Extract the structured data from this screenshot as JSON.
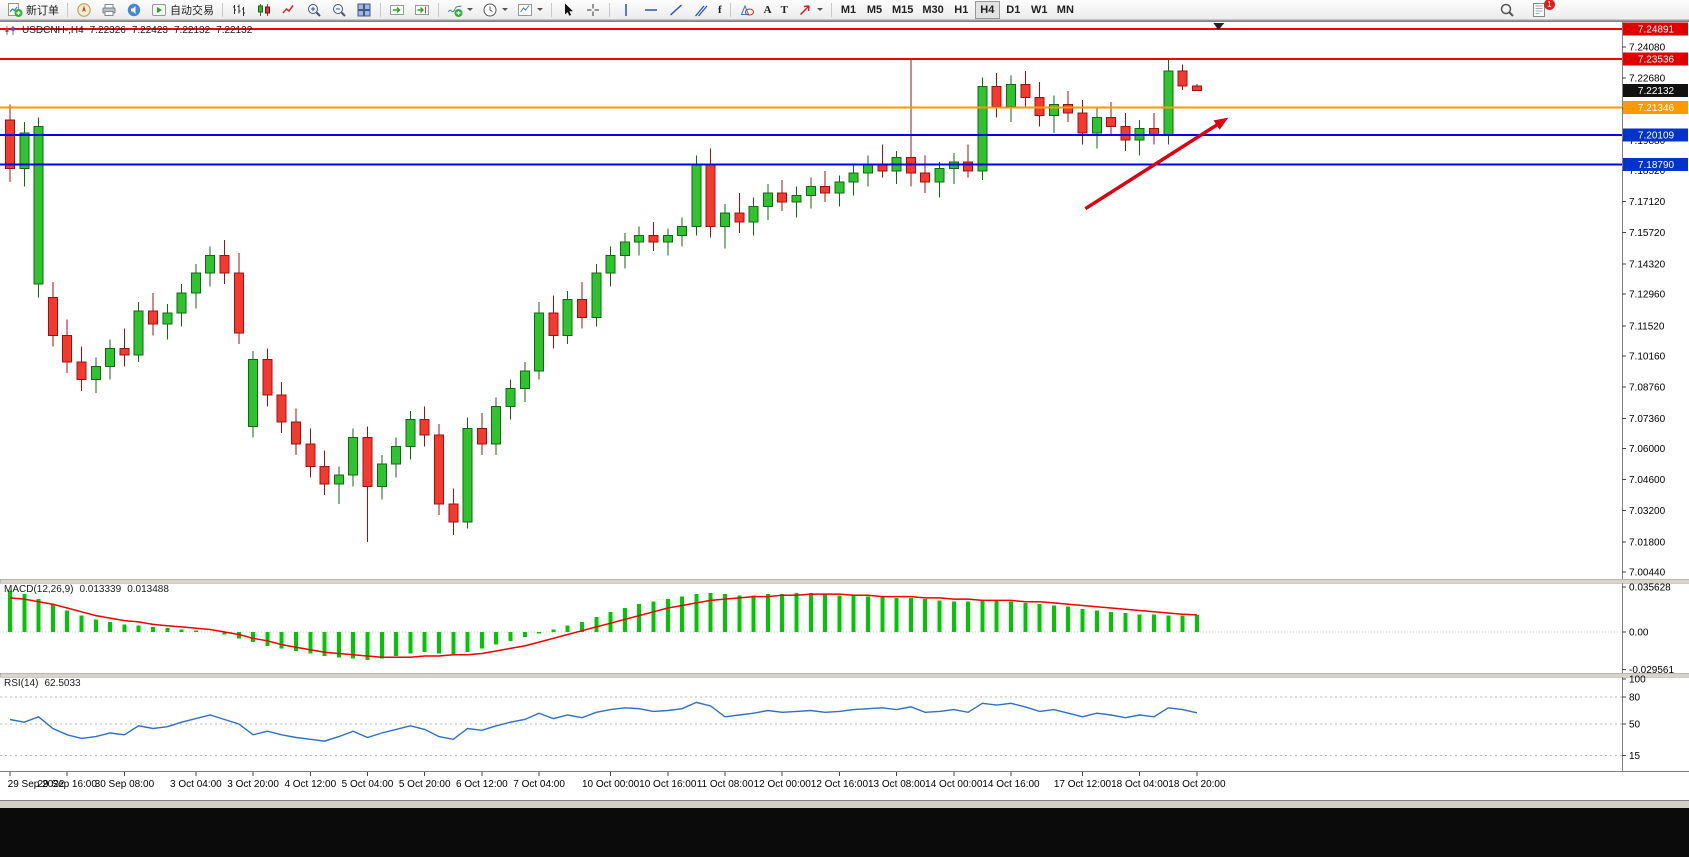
{
  "toolbar": {
    "new_order": "新订单",
    "autotrading": "自动交易",
    "glyphs": {
      "text_tool": "A",
      "text_label_tool": "T",
      "fibo_tool": "f"
    },
    "timeframes": [
      "M1",
      "M5",
      "M15",
      "M30",
      "H1",
      "H4",
      "D1",
      "W1",
      "MN"
    ],
    "active_timeframe": "H4",
    "mail_badge": "1"
  },
  "chart": {
    "symbol_period": "USDCNH-,H4",
    "open": "7.22326",
    "high": "7.22423",
    "low": "7.22132",
    "close": "7.22132"
  },
  "indicators": {
    "macd_label": "MACD(12,26,9)",
    "macd_value_main": "0.013339",
    "macd_value_signal": "0.013488",
    "rsi_label": "RSI(14)",
    "rsi_value": "62.5033"
  },
  "chart_data": {
    "type": "candlestick",
    "symbol": "USDCNH-",
    "timeframe": "H4",
    "price_axis_ticks": [
      "7.24080",
      "7.22680",
      "7.21280",
      "7.19880",
      "7.18520",
      "7.17120",
      "7.15720",
      "7.14320",
      "7.12960",
      "7.11520",
      "7.10160",
      "7.08760",
      "7.07360",
      "7.06000",
      "7.04600",
      "7.03200",
      "7.01800",
      "7.00440"
    ],
    "x_labels": [
      {
        "i": 0,
        "t": "29 Sep 2022"
      },
      {
        "i": 4,
        "t": "29 Sep 16:00"
      },
      {
        "i": 8,
        "t": "30 Sep 08:00"
      },
      {
        "i": 13,
        "t": "3 Oct 04:00"
      },
      {
        "i": 17,
        "t": "3 Oct 20:00"
      },
      {
        "i": 21,
        "t": "4 Oct 12:00"
      },
      {
        "i": 25,
        "t": "5 Oct 04:00"
      },
      {
        "i": 29,
        "t": "5 Oct 20:00"
      },
      {
        "i": 33,
        "t": "6 Oct 12:00"
      },
      {
        "i": 37,
        "t": "7 Oct 04:00"
      },
      {
        "i": 42,
        "t": "10 Oct 00:00"
      },
      {
        "i": 46,
        "t": "10 Oct 16:00"
      },
      {
        "i": 50,
        "t": "11 Oct 08:00"
      },
      {
        "i": 54,
        "t": "12 Oct 00:00"
      },
      {
        "i": 58,
        "t": "12 Oct 16:00"
      },
      {
        "i": 62,
        "t": "13 Oct 08:00"
      },
      {
        "i": 66,
        "t": "14 Oct 00:00"
      },
      {
        "i": 70,
        "t": "14 Oct 16:00"
      },
      {
        "i": 75,
        "t": "17 Oct 12:00"
      },
      {
        "i": 79,
        "t": "18 Oct 04:00"
      },
      {
        "i": 83,
        "t": "18 Oct 20:00"
      }
    ],
    "candles": [
      [
        7.208,
        7.215,
        7.18,
        7.186
      ],
      [
        7.186,
        7.207,
        7.178,
        7.202
      ],
      [
        7.134,
        7.209,
        7.128,
        7.205
      ],
      [
        7.128,
        7.135,
        7.106,
        7.111
      ],
      [
        7.111,
        7.118,
        7.094,
        7.099
      ],
      [
        7.099,
        7.106,
        7.086,
        7.091
      ],
      [
        7.091,
        7.101,
        7.085,
        7.097
      ],
      [
        7.097,
        7.109,
        7.091,
        7.105
      ],
      [
        7.105,
        7.114,
        7.097,
        7.102
      ],
      [
        7.102,
        7.126,
        7.099,
        7.122
      ],
      [
        7.122,
        7.13,
        7.111,
        7.116
      ],
      [
        7.116,
        7.125,
        7.109,
        7.121
      ],
      [
        7.121,
        7.134,
        7.115,
        7.13
      ],
      [
        7.13,
        7.143,
        7.123,
        7.139
      ],
      [
        7.139,
        7.151,
        7.133,
        7.147
      ],
      [
        7.147,
        7.154,
        7.134,
        7.139
      ],
      [
        7.139,
        7.148,
        7.107,
        7.112
      ],
      [
        7.07,
        7.104,
        7.065,
        7.1
      ],
      [
        7.1,
        7.105,
        7.079,
        7.084
      ],
      [
        7.084,
        7.09,
        7.067,
        7.072
      ],
      [
        7.072,
        7.078,
        7.057,
        7.062
      ],
      [
        7.062,
        7.069,
        7.047,
        7.052
      ],
      [
        7.052,
        7.059,
        7.039,
        7.044
      ],
      [
        7.044,
        7.052,
        7.035,
        7.048
      ],
      [
        7.048,
        7.069,
        7.043,
        7.065
      ],
      [
        7.065,
        7.07,
        7.018,
        7.043
      ],
      [
        7.043,
        7.057,
        7.037,
        7.053
      ],
      [
        7.053,
        7.065,
        7.047,
        7.061
      ],
      [
        7.061,
        7.077,
        7.055,
        7.073
      ],
      [
        7.073,
        7.079,
        7.061,
        7.066
      ],
      [
        7.066,
        7.071,
        7.03,
        7.035
      ],
      [
        7.035,
        7.042,
        7.021,
        7.027
      ],
      [
        7.027,
        7.074,
        7.024,
        7.069
      ],
      [
        7.069,
        7.076,
        7.057,
        7.062
      ],
      [
        7.062,
        7.083,
        7.057,
        7.079
      ],
      [
        7.079,
        7.091,
        7.073,
        7.087
      ],
      [
        7.087,
        7.099,
        7.081,
        7.095
      ],
      [
        7.095,
        7.126,
        7.091,
        7.121
      ],
      [
        7.121,
        7.129,
        7.105,
        7.111
      ],
      [
        7.111,
        7.131,
        7.107,
        7.127
      ],
      [
        7.127,
        7.135,
        7.114,
        7.119
      ],
      [
        7.119,
        7.143,
        7.115,
        7.139
      ],
      [
        7.139,
        7.151,
        7.133,
        7.147
      ],
      [
        7.147,
        7.157,
        7.141,
        7.153
      ],
      [
        7.153,
        7.16,
        7.147,
        7.156
      ],
      [
        7.156,
        7.162,
        7.149,
        7.153
      ],
      [
        7.153,
        7.159,
        7.147,
        7.156
      ],
      [
        7.156,
        7.164,
        7.151,
        7.16
      ],
      [
        7.16,
        7.192,
        7.156,
        7.188
      ],
      [
        7.188,
        7.195,
        7.155,
        7.16
      ],
      [
        7.16,
        7.17,
        7.15,
        7.166
      ],
      [
        7.166,
        7.175,
        7.157,
        7.162
      ],
      [
        7.162,
        7.173,
        7.156,
        7.169
      ],
      [
        7.169,
        7.179,
        7.163,
        7.175
      ],
      [
        7.175,
        7.181,
        7.167,
        7.171
      ],
      [
        7.171,
        7.178,
        7.164,
        7.174
      ],
      [
        7.174,
        7.182,
        7.168,
        7.178
      ],
      [
        7.178,
        7.185,
        7.171,
        7.175
      ],
      [
        7.175,
        7.183,
        7.169,
        7.18
      ],
      [
        7.18,
        7.188,
        7.174,
        7.184
      ],
      [
        7.184,
        7.192,
        7.178,
        7.188
      ],
      [
        7.188,
        7.197,
        7.182,
        7.185
      ],
      [
        7.185,
        7.194,
        7.179,
        7.191
      ],
      [
        7.191,
        7.2355,
        7.178,
        7.184
      ],
      [
        7.184,
        7.192,
        7.175,
        7.18
      ],
      [
        7.18,
        7.189,
        7.173,
        7.186
      ],
      [
        7.186,
        7.193,
        7.179,
        7.189
      ],
      [
        7.189,
        7.197,
        7.182,
        7.185
      ],
      [
        7.185,
        7.227,
        7.181,
        7.223
      ],
      [
        7.223,
        7.229,
        7.209,
        7.214
      ],
      [
        7.214,
        7.228,
        7.207,
        7.224
      ],
      [
        7.224,
        7.23,
        7.213,
        7.218
      ],
      [
        7.218,
        7.225,
        7.205,
        7.21
      ],
      [
        7.21,
        7.219,
        7.202,
        7.215
      ],
      [
        7.215,
        7.221,
        7.207,
        7.211
      ],
      [
        7.211,
        7.217,
        7.197,
        7.202
      ],
      [
        7.202,
        7.213,
        7.195,
        7.209
      ],
      [
        7.209,
        7.216,
        7.201,
        7.205
      ],
      [
        7.205,
        7.211,
        7.194,
        7.199
      ],
      [
        7.199,
        7.208,
        7.192,
        7.204
      ],
      [
        7.204,
        7.211,
        7.197,
        7.201
      ],
      [
        7.201,
        7.2355,
        7.197,
        7.23
      ],
      [
        7.23,
        7.233,
        7.2215,
        7.2233
      ],
      [
        7.22326,
        7.22423,
        7.22132,
        7.22132
      ]
    ],
    "hlines": [
      {
        "label": "7.24891",
        "value": 7.24891,
        "line_color": "#ee0000",
        "tag_color": "#e00000"
      },
      {
        "label": "7.23536",
        "value": 7.23536,
        "line_color": "#ee0000",
        "tag_color": "#e00000"
      },
      {
        "label": "7.22132",
        "value": 7.22132,
        "line_color": null,
        "tag_color": "#111111",
        "current": true
      },
      {
        "label": "7.21346",
        "value": 7.21346,
        "line_color": "#ff9900",
        "tag_color": "#ff9900"
      },
      {
        "label": "7.20109",
        "value": 7.20109,
        "line_color": "#0000ee",
        "tag_color": "#0033cc"
      },
      {
        "label": "7.18790",
        "value": 7.1879,
        "line_color": "#0000ee",
        "tag_color": "#0033cc"
      }
    ],
    "macd": {
      "scale_labels": [
        "0.035628",
        "0.00",
        "-0.029561"
      ],
      "histogram": [
        0.033,
        0.03,
        0.026,
        0.022,
        0.017,
        0.013,
        0.01,
        0.008,
        0.006,
        0.005,
        0.004,
        0.003,
        0.002,
        0.001,
        0.0,
        -0.002,
        -0.005,
        -0.008,
        -0.011,
        -0.013,
        -0.015,
        -0.017,
        -0.019,
        -0.02,
        -0.021,
        -0.022,
        -0.021,
        -0.019,
        -0.017,
        -0.016,
        -0.017,
        -0.018,
        -0.016,
        -0.013,
        -0.01,
        -0.007,
        -0.004,
        -0.001,
        0.002,
        0.005,
        0.008,
        0.012,
        0.016,
        0.019,
        0.022,
        0.024,
        0.026,
        0.028,
        0.03,
        0.031,
        0.03,
        0.029,
        0.029,
        0.03,
        0.03,
        0.031,
        0.031,
        0.03,
        0.029,
        0.029,
        0.028,
        0.028,
        0.027,
        0.027,
        0.026,
        0.025,
        0.024,
        0.024,
        0.025,
        0.025,
        0.024,
        0.023,
        0.022,
        0.021,
        0.02,
        0.018,
        0.017,
        0.016,
        0.015,
        0.014,
        0.014,
        0.013,
        0.013,
        0.0133
      ],
      "signal": [
        0.027,
        0.026,
        0.024,
        0.022,
        0.019,
        0.016,
        0.013,
        0.011,
        0.009,
        0.008,
        0.006,
        0.005,
        0.004,
        0.003,
        0.002,
        0.0,
        -0.002,
        -0.005,
        -0.007,
        -0.01,
        -0.012,
        -0.014,
        -0.016,
        -0.017,
        -0.018,
        -0.019,
        -0.02,
        -0.02,
        -0.02,
        -0.019,
        -0.019,
        -0.018,
        -0.018,
        -0.017,
        -0.015,
        -0.013,
        -0.011,
        -0.008,
        -0.005,
        -0.002,
        0.001,
        0.004,
        0.007,
        0.01,
        0.013,
        0.016,
        0.019,
        0.021,
        0.023,
        0.025,
        0.026,
        0.027,
        0.028,
        0.028,
        0.029,
        0.029,
        0.03,
        0.03,
        0.03,
        0.029,
        0.029,
        0.028,
        0.028,
        0.028,
        0.027,
        0.027,
        0.026,
        0.026,
        0.025,
        0.025,
        0.025,
        0.024,
        0.024,
        0.023,
        0.022,
        0.021,
        0.02,
        0.019,
        0.018,
        0.017,
        0.016,
        0.015,
        0.014,
        0.0135
      ]
    },
    "rsi": {
      "level_labels": [
        "100",
        "80",
        "50",
        "15"
      ],
      "dashed_levels": [
        80,
        50,
        15
      ],
      "values": [
        55,
        52,
        58,
        45,
        38,
        34,
        36,
        40,
        38,
        48,
        45,
        47,
        52,
        56,
        60,
        55,
        50,
        38,
        42,
        38,
        35,
        33,
        31,
        36,
        42,
        35,
        40,
        44,
        48,
        44,
        36,
        33,
        45,
        43,
        48,
        52,
        55,
        62,
        56,
        60,
        57,
        63,
        66,
        68,
        67,
        64,
        65,
        67,
        74,
        70,
        58,
        60,
        62,
        65,
        63,
        64,
        65,
        63,
        64,
        66,
        67,
        68,
        66,
        69,
        63,
        64,
        66,
        63,
        73,
        71,
        73,
        69,
        64,
        66,
        62,
        58,
        62,
        60,
        57,
        60,
        58,
        68,
        66,
        62.5
      ]
    },
    "annotation_arrow": {
      "from_idx": 75.2,
      "from_price": 7.168,
      "to_idx": 85.2,
      "to_price": 7.209,
      "color": "#dd0010"
    },
    "shift_marker_idx": 84.5,
    "colors": {
      "bull": "#2fc42f",
      "bull_border": "#156715",
      "bear": "#f23b2e",
      "bear_border": "#a01010",
      "macd_hist": "#00c800",
      "macd_signal": "#ee0000",
      "rsi_line": "#2f6fc4"
    }
  }
}
